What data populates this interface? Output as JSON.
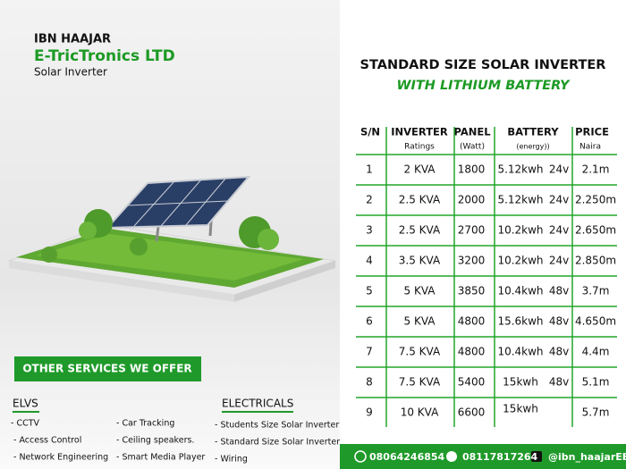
{
  "brand": {
    "name": "IBN HAAJAR",
    "company": "E-TricTronics LTD",
    "tagline": "Solar Inverter"
  },
  "heading": {
    "title": "STANDARD SIZE SOLAR INVERTER",
    "subtitle": "WITH LITHIUM BATTERY"
  },
  "table": {
    "headers": [
      "S/N",
      "INVERTER",
      "PANEL",
      "BATTERY",
      "PRICE"
    ],
    "subheaders": [
      "Ratings",
      "(Watt)",
      "(energy))",
      "Naira"
    ],
    "rows": [
      {
        "sn": "1",
        "inverter": "2  KVA",
        "panel": "1800",
        "energy": "5.12kwh",
        "voltage": "24v",
        "price": "2.1m"
      },
      {
        "sn": "2",
        "inverter": "2.5 KVA",
        "panel": "2000",
        "energy": "5.12kwh",
        "voltage": "24v",
        "price": "2.250m"
      },
      {
        "sn": "3",
        "inverter": "2.5 KVA",
        "panel": "2700",
        "energy": "10.2kwh",
        "voltage": "24v",
        "price": "2.650m"
      },
      {
        "sn": "4",
        "inverter": "3.5 KVA",
        "panel": "3200",
        "energy": "10.2kwh",
        "voltage": "24v",
        "price": "2.850m"
      },
      {
        "sn": "5",
        "inverter": "5  KVA",
        "panel": "3850",
        "energy": "10.4kwh",
        "voltage": "48v",
        "price": "3.7m"
      },
      {
        "sn": "6",
        "inverter": "5  KVA",
        "panel": "4800",
        "energy": "15.6kwh",
        "voltage": "48v",
        "price": "4.650m"
      },
      {
        "sn": "7",
        "inverter": "7.5 KVA",
        "panel": "4800",
        "energy": "10.4kwh",
        "voltage": "48v",
        "price": "4.4m"
      },
      {
        "sn": "8",
        "inverter": "7.5 KVA",
        "panel": "5400",
        "energy": "15kwh",
        "voltage": "48v",
        "price": "5.1m"
      },
      {
        "sn": "9",
        "inverter": "10 KVA",
        "panel": "6600",
        "energy": "15kwh",
        "price": "5.7m"
      }
    ]
  },
  "services": {
    "button": "OTHER SERVICES WE OFFER",
    "elvs": {
      "title": "ELVS",
      "items": [
        "- CCTV",
        "- Access Control",
        "- Network Engineering",
        "- Car Tracking",
        "- Ceiling speakers.",
        "- Smart Media Player"
      ]
    },
    "electricals": {
      "title": "ELECTRICALS",
      "items": [
        "- Students Size Solar Inverter",
        "- Standard Size Solar Inverter",
        "- Wiring"
      ]
    }
  },
  "footer": {
    "contacts": [
      "08064246854",
      "08117817264",
      "@ibn_haajarEE"
    ]
  }
}
